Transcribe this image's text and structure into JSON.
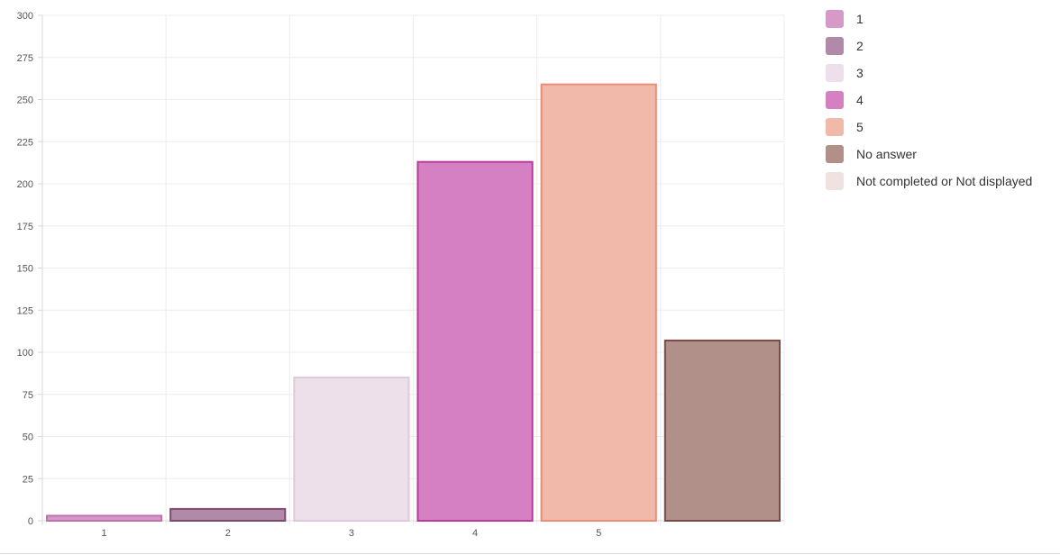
{
  "chart_data": {
    "type": "bar",
    "title": "",
    "xlabel": "",
    "ylabel": "",
    "ylim": [
      0,
      300
    ],
    "yticks": [
      0,
      25,
      50,
      75,
      100,
      125,
      150,
      175,
      200,
      225,
      250,
      275,
      300
    ],
    "grid": true,
    "legend_position": "right",
    "categories": [
      "1",
      "2",
      "3",
      "4",
      "5",
      "",
      ""
    ],
    "x_tick_labels": [
      "1",
      "2",
      "3",
      "4",
      "5"
    ],
    "series": [
      {
        "name": "1",
        "value": 3,
        "color": "#d79ac8",
        "border": "#c070ad"
      },
      {
        "name": "2",
        "value": 7,
        "color": "#b08aa8",
        "border": "#7a4a6e"
      },
      {
        "name": "3",
        "value": 85,
        "color": "#eee0ea",
        "border": "#e0c8d8"
      },
      {
        "name": "4",
        "value": 213,
        "color": "#d680c4",
        "border": "#b83a9e"
      },
      {
        "name": "5",
        "value": 259,
        "color": "#f0b9aa",
        "border": "#e88d77"
      },
      {
        "name": "No answer",
        "value": 107,
        "color": "#b09088",
        "border": "#7a4a44"
      },
      {
        "name": "Not completed or Not displayed",
        "value": 0,
        "color": "#f0e2e0",
        "border": "#e8d2ce"
      }
    ]
  }
}
